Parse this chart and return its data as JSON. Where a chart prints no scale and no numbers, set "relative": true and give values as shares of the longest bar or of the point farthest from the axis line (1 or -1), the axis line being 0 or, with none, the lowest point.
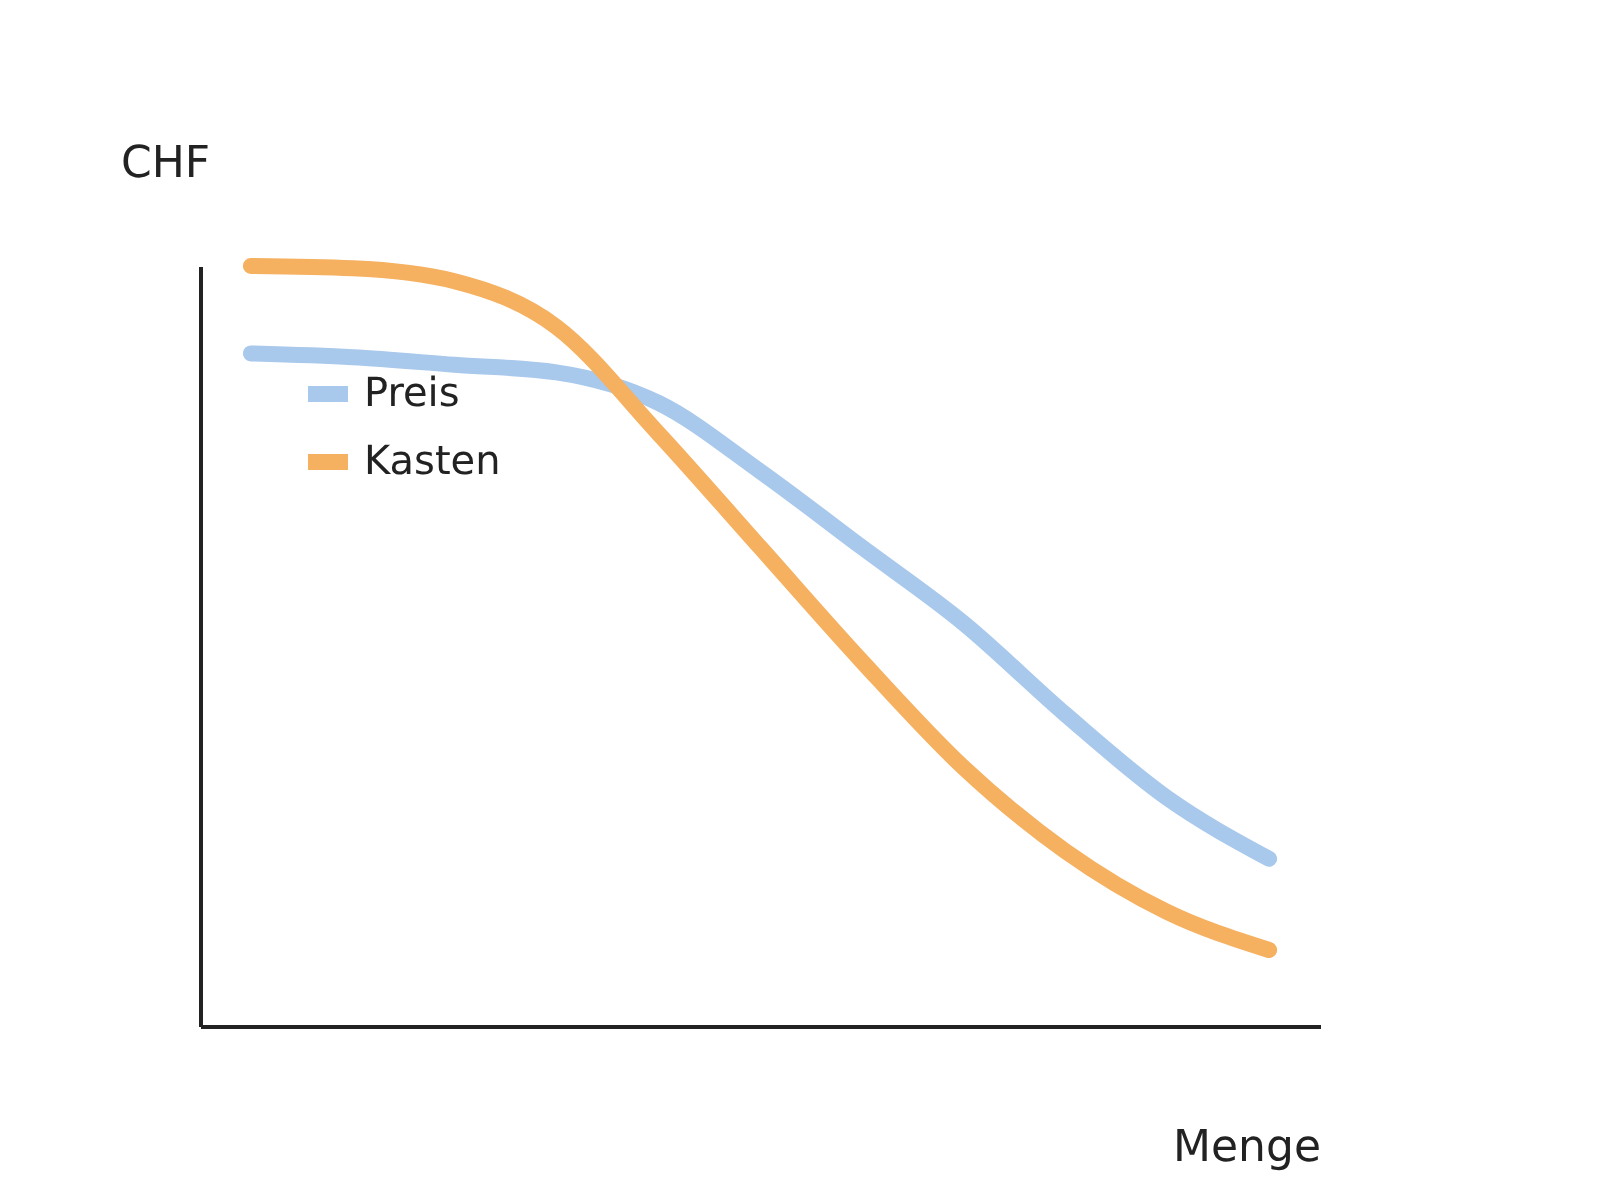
{
  "chart_data": {
    "type": "line",
    "xlabel": "Menge",
    "ylabel": "CHF",
    "relative": true,
    "legend": "top left",
    "grid": false,
    "marker": "none",
    "line_style": "solid",
    "categories": [
      null,
      null,
      null,
      null,
      null,
      null,
      null,
      null,
      null,
      null,
      null
    ],
    "series": [
      {
        "name": "Preis",
        "color": "#a8c8ec",
        "values": [
          0.885,
          0.88,
          0.87,
          0.86,
          0.82,
          0.73,
          0.63,
          0.53,
          0.41,
          0.3,
          0.22
        ]
      },
      {
        "name": "Kasten",
        "color": "#f5b060",
        "values": [
          1.0,
          0.997,
          0.98,
          0.92,
          0.78,
          0.63,
          0.48,
          0.34,
          0.23,
          0.15,
          0.1
        ]
      }
    ]
  }
}
